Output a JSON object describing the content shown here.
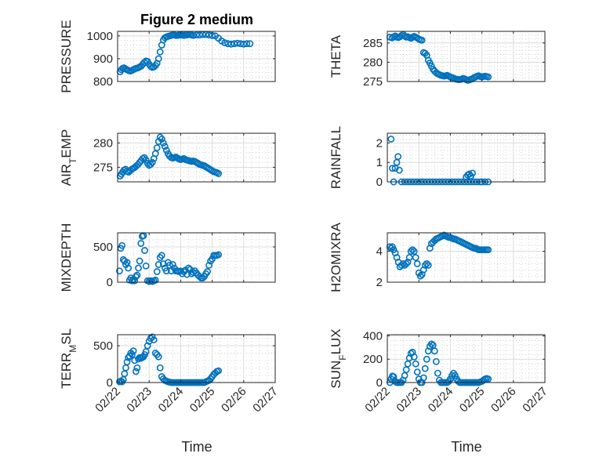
{
  "figure": {
    "title": "Figure 2 medium",
    "xlabel": "Time",
    "marker_color": "#0072bd"
  },
  "chart_data": [
    {
      "type": "scatter",
      "title": "Figure 2 medium",
      "ylabel": "PRESSURE",
      "ylim": [
        800,
        1020
      ],
      "yticks": [
        800,
        900,
        1000
      ],
      "xlim": [
        0,
        5
      ],
      "xticks": [
        "02/22",
        "02/23",
        "02/24",
        "02/25",
        "02/26",
        "02/27"
      ],
      "grid": true,
      "x": [
        0.08,
        0.12,
        0.16,
        0.2,
        0.25,
        0.3,
        0.35,
        0.4,
        0.45,
        0.5,
        0.55,
        0.6,
        0.65,
        0.7,
        0.75,
        0.8,
        0.85,
        0.9,
        0.95,
        1.0,
        1.05,
        1.1,
        1.15,
        1.2,
        1.25,
        1.3,
        1.35,
        1.4,
        1.45,
        1.5,
        1.55,
        1.6,
        1.65,
        1.7,
        1.75,
        1.8,
        1.85,
        1.9,
        1.95,
        2.0,
        2.05,
        2.1,
        2.15,
        2.2,
        2.25,
        2.3,
        2.35,
        2.4,
        2.5,
        2.6,
        2.7,
        2.8,
        2.9,
        3.0,
        3.1,
        3.2,
        3.3,
        3.4,
        3.5,
        3.6,
        3.7,
        3.8,
        3.9,
        4.0,
        4.1,
        4.2
      ],
      "y": [
        843,
        852,
        858,
        860,
        856,
        852,
        848,
        846,
        848,
        852,
        856,
        858,
        860,
        864,
        868,
        876,
        884,
        890,
        888,
        876,
        866,
        862,
        864,
        870,
        880,
        900,
        930,
        960,
        982,
        992,
        996,
        998,
        1000,
        1002,
        1004,
        1004,
        1002,
        1002,
        1004,
        1004,
        1004,
        1002,
        1004,
        1004,
        1006,
        1006,
        1004,
        1002,
        1004,
        1004,
        1006,
        1006,
        1004,
        1002,
        1000,
        990,
        978,
        970,
        966,
        964,
        966,
        968,
        966,
        964,
        966,
        966
      ]
    },
    {
      "type": "scatter",
      "ylabel": "THETA",
      "ylim": [
        275,
        288
      ],
      "yticks": [
        275,
        280,
        285
      ],
      "xlim": [
        0,
        5
      ],
      "xticks": [
        "02/22",
        "02/23",
        "02/24",
        "02/25",
        "02/26",
        "02/27"
      ],
      "grid": true,
      "x": [
        0.08,
        0.15,
        0.2,
        0.25,
        0.3,
        0.35,
        0.4,
        0.45,
        0.5,
        0.55,
        0.6,
        0.65,
        0.7,
        0.75,
        0.8,
        0.85,
        0.9,
        0.95,
        1.0,
        1.05,
        1.1,
        1.15,
        1.2,
        1.25,
        1.3,
        1.35,
        1.4,
        1.45,
        1.5,
        1.55,
        1.6,
        1.65,
        1.7,
        1.75,
        1.8,
        1.85,
        1.9,
        1.95,
        2.0,
        2.05,
        2.1,
        2.15,
        2.2,
        2.25,
        2.3,
        2.35,
        2.4,
        2.45,
        2.5,
        2.55,
        2.6,
        2.65,
        2.7,
        2.75,
        2.8,
        2.85,
        2.9,
        2.95,
        3.0,
        3.05,
        3.1,
        3.15,
        3.2
      ],
      "y": [
        286.5,
        286.3,
        286.6,
        286.8,
        286.5,
        286.4,
        286.6,
        286.9,
        287.2,
        286.8,
        286.5,
        286.6,
        286.4,
        286.2,
        286.5,
        286.7,
        286.5,
        286.3,
        286.0,
        285.8,
        285.7,
        282.5,
        282.3,
        281.8,
        280.5,
        279.8,
        279.0,
        278.2,
        277.7,
        277.3,
        277.0,
        276.8,
        276.6,
        276.5,
        276.4,
        276.5,
        276.6,
        276.4,
        276.2,
        276.0,
        275.9,
        275.7,
        275.6,
        275.5,
        275.5,
        275.6,
        275.8,
        275.7,
        275.5,
        275.3,
        275.4,
        275.6,
        275.7,
        276.0,
        276.2,
        276.4,
        276.5,
        276.3,
        276.2,
        276.3,
        276.4,
        276.3,
        276.2
      ]
    },
    {
      "type": "scatter",
      "ylabel": "AIR_TEMP",
      "ylim": [
        272,
        282
      ],
      "yticks": [
        275,
        280
      ],
      "xlim": [
        0,
        5
      ],
      "xticks": [
        "02/22",
        "02/23",
        "02/24",
        "02/25",
        "02/26",
        "02/27"
      ],
      "grid": true,
      "x": [
        0.08,
        0.12,
        0.16,
        0.2,
        0.25,
        0.3,
        0.35,
        0.4,
        0.45,
        0.5,
        0.55,
        0.6,
        0.65,
        0.7,
        0.75,
        0.8,
        0.85,
        0.9,
        0.95,
        1.0,
        1.05,
        1.1,
        1.15,
        1.2,
        1.25,
        1.3,
        1.35,
        1.4,
        1.45,
        1.5,
        1.55,
        1.6,
        1.65,
        1.7,
        1.75,
        1.8,
        1.85,
        1.9,
        1.95,
        2.0,
        2.05,
        2.1,
        2.15,
        2.2,
        2.25,
        2.3,
        2.35,
        2.4,
        2.45,
        2.5,
        2.55,
        2.6,
        2.65,
        2.7,
        2.75,
        2.8,
        2.85,
        2.9,
        2.95,
        3.0,
        3.05,
        3.1,
        3.15,
        3.2
      ],
      "y": [
        273.2,
        273.6,
        274.0,
        274.4,
        274.6,
        274.2,
        274.0,
        274.3,
        274.6,
        274.8,
        275.0,
        275.3,
        275.6,
        276.0,
        276.4,
        276.8,
        277.0,
        276.5,
        275.8,
        275.4,
        275.6,
        276.0,
        276.8,
        277.8,
        279.0,
        280.3,
        281.2,
        280.8,
        280.0,
        279.3,
        278.5,
        277.8,
        277.3,
        277.0,
        276.9,
        277.0,
        277.1,
        276.9,
        276.7,
        276.6,
        276.7,
        276.8,
        276.6,
        276.5,
        276.4,
        276.3,
        276.2,
        276.3,
        276.2,
        276.0,
        275.8,
        275.6,
        275.5,
        275.4,
        275.3,
        275.1,
        274.9,
        274.7,
        274.5,
        274.3,
        274.1,
        274.0,
        273.9,
        273.7
      ]
    },
    {
      "type": "scatter",
      "ylabel": "RAINFALL",
      "ylim": [
        0,
        2.5
      ],
      "yticks": [
        0,
        1,
        2
      ],
      "xlim": [
        0,
        5
      ],
      "xticks": [
        "02/22",
        "02/23",
        "02/24",
        "02/25",
        "02/26",
        "02/27"
      ],
      "grid": true,
      "x": [
        0.12,
        0.16,
        0.2,
        0.25,
        0.3,
        0.34,
        0.38,
        0.45,
        0.55,
        0.65,
        0.75,
        0.85,
        0.95,
        1.05,
        1.15,
        1.25,
        1.35,
        1.45,
        1.55,
        1.65,
        1.75,
        1.85,
        1.95,
        2.05,
        2.15,
        2.25,
        2.35,
        2.45,
        2.55,
        2.65,
        2.75,
        2.85,
        2.95,
        3.0,
        3.1,
        3.2,
        2.5,
        2.55,
        2.6,
        2.65,
        2.7
      ],
      "y": [
        2.2,
        0.7,
        0.0,
        0.7,
        1.0,
        1.3,
        0.6,
        0,
        0,
        0,
        0,
        0,
        0,
        0,
        0,
        0,
        0,
        0,
        0,
        0,
        0,
        0,
        0,
        0,
        0,
        0,
        0,
        0,
        0,
        0,
        0,
        0,
        0,
        0,
        0,
        0,
        0.25,
        0.35,
        0.4,
        0.3,
        0.45
      ]
    },
    {
      "type": "scatter",
      "ylabel": "MIXDEPTH",
      "ylim": [
        0,
        700
      ],
      "yticks": [
        0,
        500
      ],
      "xlim": [
        0,
        5
      ],
      "xticks": [
        "02/22",
        "02/23",
        "02/24",
        "02/25",
        "02/26",
        "02/27"
      ],
      "grid": true,
      "x": [
        0.06,
        0.1,
        0.14,
        0.18,
        0.22,
        0.26,
        0.3,
        0.34,
        0.38,
        0.42,
        0.46,
        0.5,
        0.54,
        0.58,
        0.62,
        0.66,
        0.7,
        0.74,
        0.78,
        0.82,
        0.86,
        0.9,
        0.95,
        1.0,
        1.05,
        1.1,
        1.15,
        1.2,
        1.25,
        1.3,
        1.35,
        1.4,
        1.45,
        1.5,
        1.55,
        1.6,
        1.65,
        1.7,
        1.75,
        1.8,
        1.85,
        1.9,
        1.95,
        2.0,
        2.05,
        2.1,
        2.15,
        2.2,
        2.25,
        2.3,
        2.35,
        2.4,
        2.45,
        2.5,
        2.55,
        2.6,
        2.65,
        2.7,
        2.75,
        2.8,
        2.85,
        2.9,
        2.95,
        3.0,
        3.05,
        3.1,
        3.15,
        3.2
      ],
      "y": [
        160,
        480,
        520,
        320,
        300,
        250,
        280,
        200,
        30,
        60,
        20,
        40,
        20,
        80,
        100,
        200,
        300,
        550,
        650,
        660,
        450,
        230,
        20,
        10,
        20,
        10,
        20,
        30,
        150,
        250,
        350,
        380,
        260,
        200,
        160,
        280,
        240,
        160,
        250,
        200,
        160,
        160,
        150,
        160,
        120,
        150,
        170,
        110,
        200,
        180,
        120,
        140,
        160,
        130,
        100,
        80,
        60,
        60,
        80,
        120,
        150,
        240,
        300,
        330,
        380,
        380,
        380,
        390
      ]
    },
    {
      "type": "scatter",
      "ylabel": "H2OMIXRA",
      "ylim": [
        2,
        5.2
      ],
      "yticks": [
        2,
        4
      ],
      "xlim": [
        0,
        5
      ],
      "xticks": [
        "02/22",
        "02/23",
        "02/24",
        "02/25",
        "02/26",
        "02/27"
      ],
      "grid": true,
      "x": [
        0.08,
        0.12,
        0.16,
        0.2,
        0.25,
        0.3,
        0.35,
        0.4,
        0.45,
        0.5,
        0.55,
        0.6,
        0.65,
        0.7,
        0.75,
        0.8,
        0.85,
        0.9,
        0.95,
        1.0,
        1.05,
        1.1,
        1.15,
        1.2,
        1.25,
        1.3,
        1.35,
        1.4,
        1.45,
        1.5,
        1.55,
        1.6,
        1.65,
        1.7,
        1.75,
        1.8,
        1.85,
        1.9,
        1.95,
        2.0,
        2.05,
        2.1,
        2.15,
        2.2,
        2.25,
        2.3,
        2.35,
        2.4,
        2.45,
        2.5,
        2.55,
        2.6,
        2.65,
        2.7,
        2.75,
        2.8,
        2.85,
        2.9,
        2.95,
        3.0,
        3.05,
        3.1,
        3.15,
        3.2
      ],
      "y": [
        4.3,
        4.2,
        4.3,
        4.1,
        3.9,
        3.6,
        3.3,
        3.0,
        3.1,
        3.2,
        3.1,
        3.2,
        3.3,
        3.6,
        4.0,
        4.1,
        4.0,
        3.6,
        3.2,
        2.6,
        2.4,
        2.5,
        2.8,
        3.1,
        3.2,
        3.1,
        4.2,
        4.5,
        4.6,
        4.7,
        4.8,
        4.85,
        4.9,
        4.95,
        5.0,
        5.05,
        5.0,
        4.95,
        4.9,
        4.9,
        4.85,
        4.8,
        4.8,
        4.75,
        4.7,
        4.65,
        4.6,
        4.55,
        4.5,
        4.45,
        4.4,
        4.35,
        4.3,
        4.25,
        4.2,
        4.2,
        4.15,
        4.1,
        4.1,
        4.1,
        4.1,
        4.1,
        4.1,
        4.1
      ]
    },
    {
      "type": "scatter",
      "ylabel": "TERR_MSL",
      "ylim": [
        0,
        650
      ],
      "yticks": [
        0,
        500
      ],
      "xlim": [
        0,
        5
      ],
      "xticks": [
        "02/22",
        "02/23",
        "02/24",
        "02/25",
        "02/26",
        "02/27"
      ],
      "grid": true,
      "x": [
        0.06,
        0.1,
        0.14,
        0.18,
        0.22,
        0.26,
        0.3,
        0.34,
        0.38,
        0.42,
        0.46,
        0.5,
        0.54,
        0.58,
        0.62,
        0.66,
        0.7,
        0.74,
        0.78,
        0.82,
        0.86,
        0.9,
        0.95,
        1.0,
        1.05,
        1.1,
        1.15,
        1.2,
        1.25,
        1.3,
        1.35,
        1.4,
        1.45,
        1.5,
        1.55,
        1.6,
        1.65,
        1.7,
        1.75,
        1.8,
        1.85,
        1.9,
        1.95,
        2.0,
        2.05,
        2.1,
        2.15,
        2.2,
        2.25,
        2.3,
        2.35,
        2.4,
        2.45,
        2.5,
        2.55,
        2.6,
        2.65,
        2.7,
        2.75,
        2.8,
        2.85,
        2.9,
        2.95,
        3.0,
        3.05,
        3.1,
        3.15,
        3.2
      ],
      "y": [
        10,
        20,
        10,
        40,
        120,
        200,
        280,
        340,
        360,
        400,
        380,
        430,
        300,
        150,
        200,
        320,
        340,
        330,
        340,
        350,
        380,
        420,
        500,
        560,
        600,
        620,
        580,
        400,
        380,
        350,
        200,
        80,
        50,
        30,
        20,
        10,
        5,
        0,
        0,
        0,
        0,
        0,
        0,
        0,
        0,
        0,
        0,
        0,
        0,
        0,
        0,
        0,
        0,
        0,
        0,
        0,
        0,
        0,
        0,
        10,
        20,
        30,
        50,
        80,
        110,
        130,
        150,
        160
      ]
    },
    {
      "type": "scatter",
      "ylabel": "SUN_FLUX",
      "ylim": [
        0,
        410
      ],
      "yticks": [
        0,
        200,
        400
      ],
      "xlim": [
        0,
        5
      ],
      "xticks": [
        "02/22",
        "02/23",
        "02/24",
        "02/25",
        "02/26",
        "02/27"
      ],
      "grid": true,
      "x": [
        0.08,
        0.12,
        0.16,
        0.2,
        0.25,
        0.3,
        0.35,
        0.4,
        0.45,
        0.5,
        0.55,
        0.6,
        0.65,
        0.7,
        0.75,
        0.8,
        0.85,
        0.9,
        0.95,
        1.0,
        1.05,
        1.1,
        1.15,
        1.2,
        1.25,
        1.3,
        1.35,
        1.4,
        1.45,
        1.5,
        1.55,
        1.6,
        1.65,
        1.7,
        1.75,
        1.8,
        1.85,
        1.9,
        1.95,
        2.0,
        2.05,
        2.1,
        2.15,
        2.2,
        2.25,
        2.3,
        2.35,
        2.4,
        2.45,
        2.5,
        2.55,
        2.6,
        2.65,
        2.7,
        2.75,
        2.8,
        2.85,
        2.9,
        2.95,
        3.0,
        3.05,
        3.1,
        3.15,
        3.2
      ],
      "y": [
        0,
        30,
        55,
        50,
        10,
        0,
        0,
        0,
        0,
        20,
        60,
        110,
        160,
        210,
        250,
        260,
        220,
        160,
        90,
        30,
        0,
        0,
        40,
        120,
        200,
        270,
        310,
        330,
        320,
        270,
        180,
        80,
        20,
        0,
        0,
        0,
        0,
        0,
        10,
        30,
        60,
        80,
        60,
        30,
        10,
        0,
        0,
        0,
        0,
        0,
        0,
        0,
        0,
        0,
        0,
        0,
        0,
        0,
        5,
        10,
        20,
        30,
        35,
        30
      ]
    }
  ]
}
